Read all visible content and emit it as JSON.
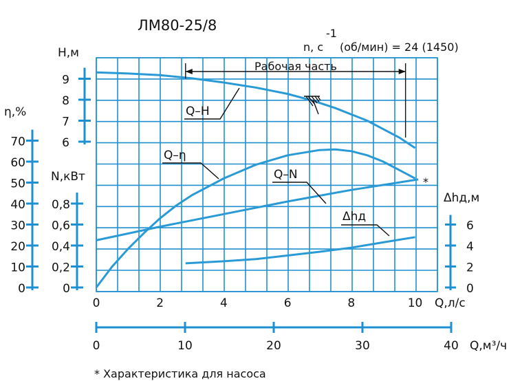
{
  "title": "ЛМ80-25/8",
  "speed_label": "n, с",
  "speed_exp": "-1",
  "speed_value": "(об/мин) = 24 (1450)",
  "working_range_label": "Рабочая часть",
  "footnote": "*   Характеристика для насоса",
  "colors": {
    "grid": "#1e8fd0",
    "curve": "#2a9ad6",
    "text": "#111111"
  },
  "chart_data": {
    "type": "line",
    "x_axis": {
      "label": "Q,л/с",
      "range": [
        0,
        10
      ],
      "ticks": [
        "0",
        "2",
        "4",
        "6",
        "8",
        "10"
      ]
    },
    "x2_axis": {
      "label": "Q,м³/ч",
      "range": [
        0,
        40
      ],
      "ticks": [
        "0",
        "10",
        "20",
        "30",
        "40"
      ]
    },
    "y_axes": [
      {
        "key": "H",
        "label": "Н,м",
        "ticks": [
          "6",
          "7",
          "8",
          "9"
        ],
        "range": [
          6,
          9
        ]
      },
      {
        "key": "eta",
        "label": "η,%",
        "ticks": [
          "0",
          "10",
          "20",
          "30",
          "40",
          "50",
          "60",
          "70"
        ],
        "range": [
          0,
          70
        ]
      },
      {
        "key": "N",
        "label": "N,кВт",
        "ticks": [
          "0",
          "0,2",
          "0,4",
          "0,6",
          "0,8"
        ],
        "range": [
          0,
          0.8
        ]
      },
      {
        "key": "dh",
        "label": "Δhд,м",
        "ticks": [
          "0",
          "2",
          "4",
          "6"
        ],
        "range": [
          0,
          6
        ]
      }
    ],
    "working_range": [
      2.8,
      9.7
    ],
    "series": [
      {
        "name": "Q–H",
        "axis": "H",
        "x": [
          0,
          1,
          2,
          3,
          4,
          5,
          6,
          6.8,
          7.5,
          8.5,
          9.5,
          10
        ],
        "y": [
          9.3,
          9.25,
          9.17,
          9.02,
          8.82,
          8.58,
          8.28,
          7.95,
          7.6,
          7.0,
          6.2,
          5.7
        ]
      },
      {
        "name": "Q–η",
        "axis": "eta",
        "x": [
          0,
          0.5,
          1,
          1.5,
          2,
          2.5,
          3,
          4,
          5,
          6,
          7,
          7.5,
          8,
          8.5,
          9,
          9.5,
          10
        ],
        "y": [
          0,
          10,
          18.5,
          26,
          33,
          39,
          44,
          52,
          58.5,
          63,
          65.5,
          65.8,
          65,
          63,
          60,
          56,
          52
        ]
      },
      {
        "name": "Q–N",
        "axis": "N",
        "x": [
          0,
          2,
          4,
          6,
          8,
          10.1
        ],
        "y": [
          0.45,
          0.58,
          0.7,
          0.82,
          0.93,
          1.03
        ]
      },
      {
        "name": "Δhд",
        "axis": "dh",
        "x": [
          2.8,
          4,
          5,
          6,
          7,
          8,
          9,
          10
        ],
        "y": [
          2.3,
          2.5,
          2.7,
          3.05,
          3.4,
          3.8,
          4.3,
          4.8
        ]
      }
    ]
  }
}
